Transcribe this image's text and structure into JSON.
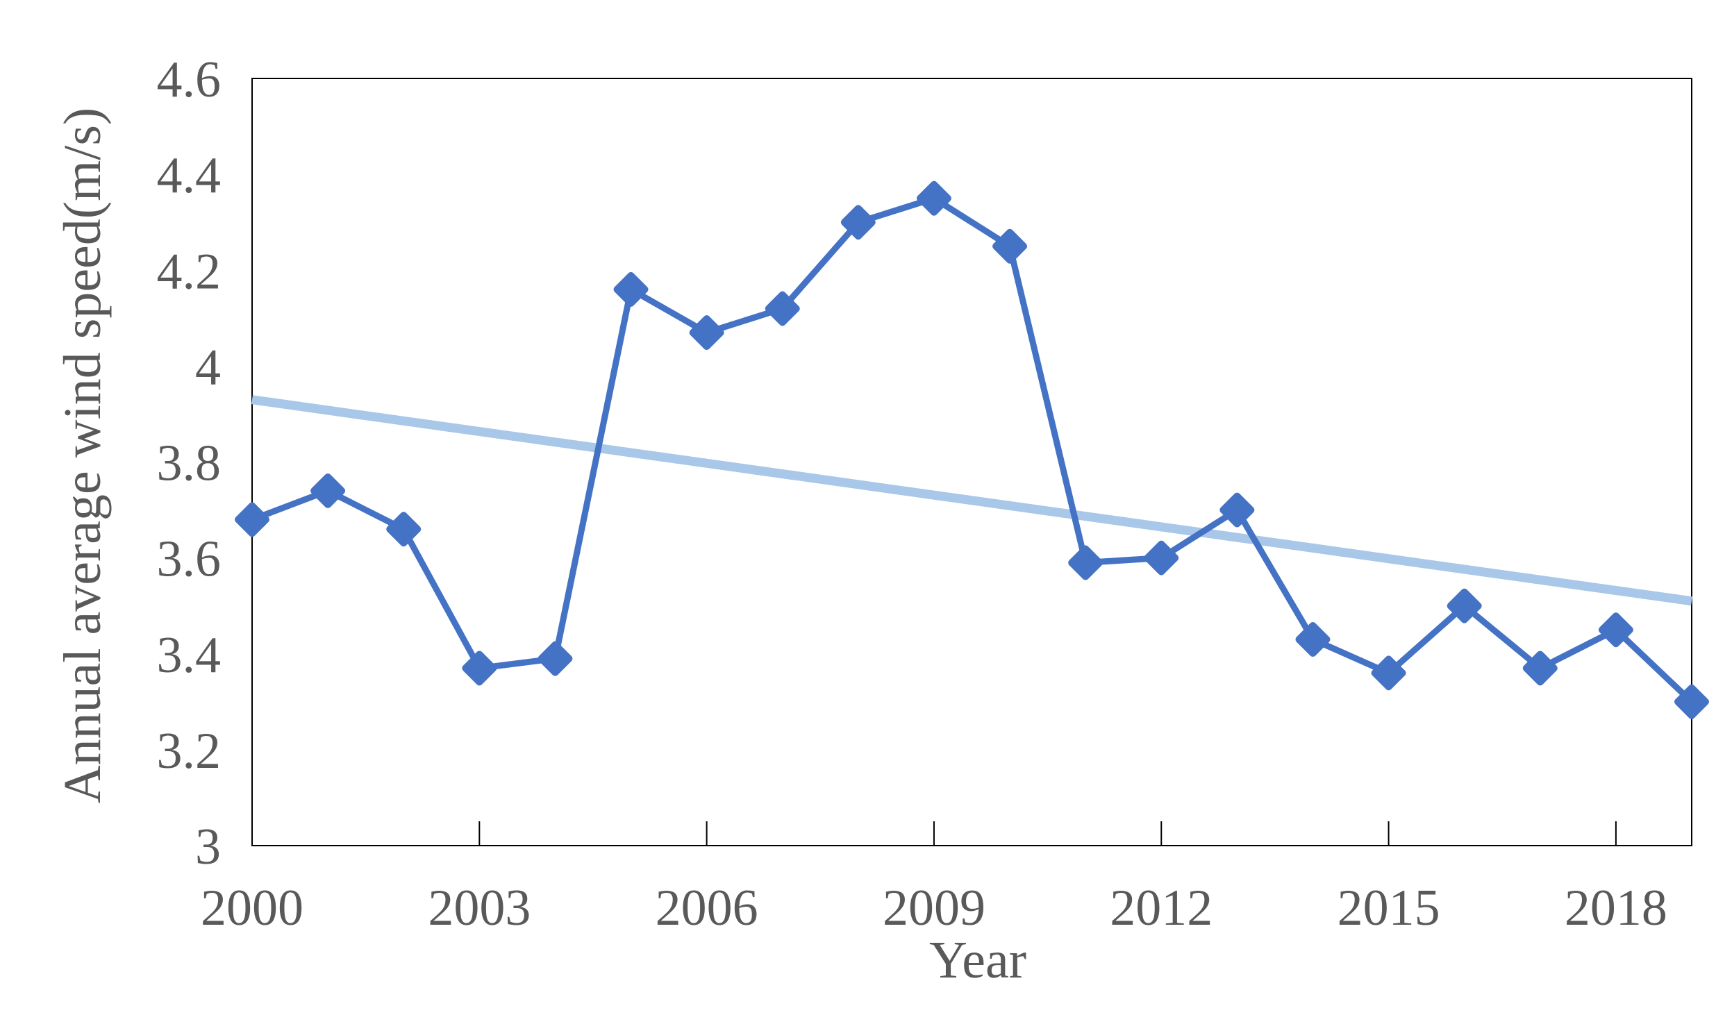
{
  "colors": {
    "series": "#4472C4",
    "trend": "#A8C7E9",
    "text": "#595959",
    "axis": "#000000",
    "background": "#FFFFFF"
  },
  "chart_data": {
    "type": "line",
    "title": "",
    "xlabel": "Year",
    "ylabel": "Annual average wind speed(m/s)",
    "x": [
      2000,
      2001,
      2002,
      2003,
      2004,
      2005,
      2006,
      2007,
      2008,
      2009,
      2010,
      2011,
      2012,
      2013,
      2014,
      2015,
      2016,
      2017,
      2018,
      2019
    ],
    "series": [
      {
        "name": "Annual average wind speed",
        "marker": "diamond",
        "values": [
          3.68,
          3.74,
          3.66,
          3.37,
          3.39,
          4.16,
          4.07,
          4.12,
          4.3,
          4.35,
          4.25,
          3.59,
          3.6,
          3.7,
          3.43,
          3.36,
          3.5,
          3.37,
          3.45,
          3.3
        ]
      }
    ],
    "trendline": {
      "type": "linear",
      "start_year": 2000,
      "start_value": 3.93,
      "end_year": 2019,
      "end_value": 3.51
    },
    "ylim": [
      3,
      4.6
    ],
    "ytick_step": 0.2,
    "ytick_labels": [
      "3",
      "3.2",
      "3.4",
      "3.6",
      "3.8",
      "4",
      "4.2",
      "4.4",
      "4.6"
    ],
    "xtick_interval": 3,
    "xtick_labels": [
      "2000",
      "2003",
      "2006",
      "2009",
      "2012",
      "2015",
      "2018"
    ],
    "grid": false,
    "legend": "none"
  }
}
